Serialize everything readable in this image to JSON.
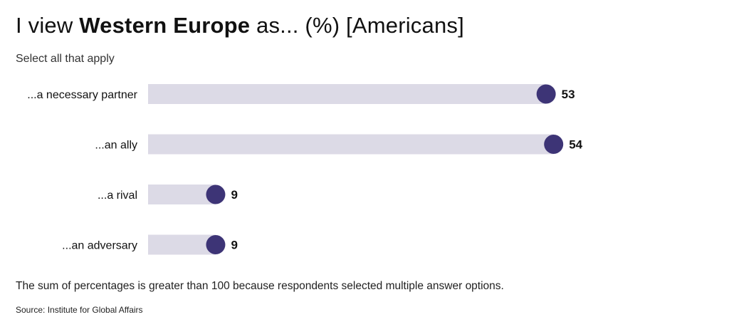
{
  "header": {
    "title_prefix": "I view ",
    "title_bold": "Western Europe",
    "title_suffix": " as... (%) [Americans]",
    "subtitle": "Select all that apply"
  },
  "footer": {
    "note": "The sum of percentages is greater than 100 because respondents selected multiple answer options.",
    "source": "Source: Institute for Global Affairs"
  },
  "chart_data": {
    "type": "bar",
    "style": "lollipop-horizontal",
    "title": "I view Western Europe as... (%) [Americans]",
    "subtitle": "Select all that apply",
    "categories": [
      "...a necessary partner",
      "...an ally",
      "...a rival",
      "...an adversary"
    ],
    "values": [
      53,
      54,
      9,
      9
    ],
    "xlim": [
      0,
      100
    ],
    "grid": false,
    "colors": {
      "track": "#dcdae6",
      "dot": "#3d3476",
      "label": "#111111"
    }
  }
}
